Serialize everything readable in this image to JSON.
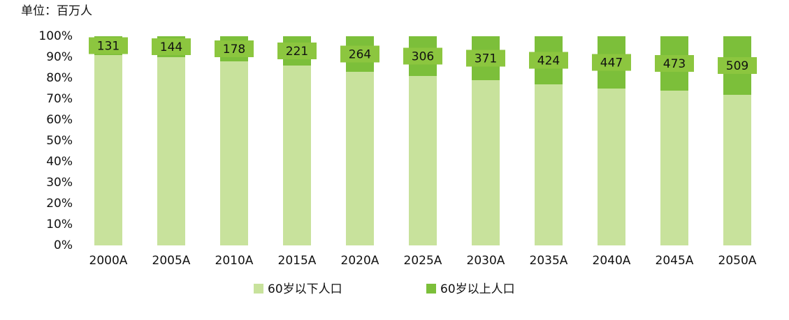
{
  "chart_data": {
    "type": "stacked_bar_percent",
    "subtitle": "单位：百万人",
    "categories": [
      "2000A",
      "2005A",
      "2010A",
      "2015A",
      "2020A",
      "2025A",
      "2030A",
      "2035A",
      "2040A",
      "2045A",
      "2050A"
    ],
    "series": [
      {
        "name": "60岁以下人口",
        "color": "#c8e29c",
        "values": [
          91,
          90,
          88,
          86,
          83,
          81,
          79,
          77,
          75,
          74,
          72
        ]
      },
      {
        "name": "60岁以上人口",
        "color": "#7cbf3a",
        "values": [
          9,
          10,
          12,
          14,
          17,
          19,
          21,
          23,
          25,
          26,
          28
        ],
        "data_labels": [
          131,
          144,
          178,
          221,
          264,
          306,
          371,
          424,
          447,
          473,
          509
        ]
      }
    ],
    "ylim": [
      0,
      100
    ],
    "yticks": [
      {
        "value": 0,
        "label": "0%"
      },
      {
        "value": 10,
        "label": "10%"
      },
      {
        "value": 20,
        "label": "20%"
      },
      {
        "value": 30,
        "label": "30%"
      },
      {
        "value": 40,
        "label": "40%"
      },
      {
        "value": 50,
        "label": "50%"
      },
      {
        "value": 60,
        "label": "60%"
      },
      {
        "value": 70,
        "label": "70%"
      },
      {
        "value": 80,
        "label": "80%"
      },
      {
        "value": 90,
        "label": "90%"
      },
      {
        "value": 100,
        "label": "100%"
      }
    ],
    "legend": "bottom"
  }
}
